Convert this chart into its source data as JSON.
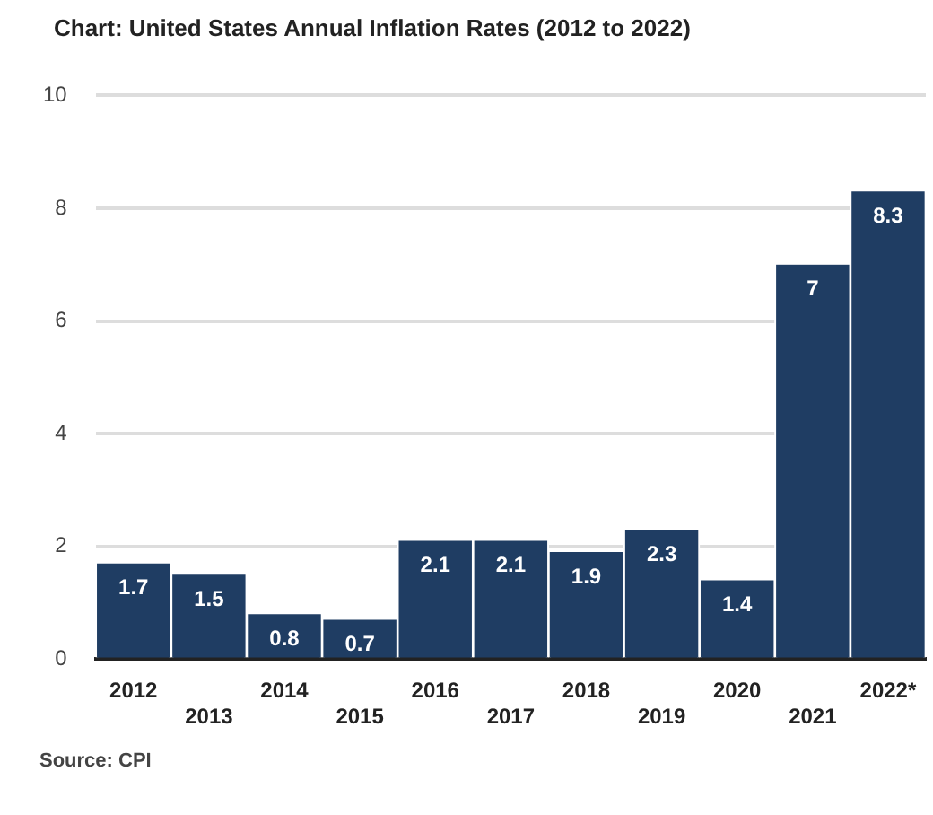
{
  "chart_data": {
    "type": "bar",
    "title": "Chart: United States Annual Inflation Rates (2012 to 2022)",
    "categories": [
      "2012",
      "2013",
      "2014",
      "2015",
      "2016",
      "2017",
      "2018",
      "2019",
      "2020",
      "2021",
      "2022*"
    ],
    "values": [
      1.7,
      1.5,
      0.8,
      0.7,
      2.1,
      2.1,
      1.9,
      2.3,
      1.4,
      7,
      8.3
    ],
    "color": "#1f3d63",
    "ylim": [
      0,
      10
    ],
    "yticks": [
      0,
      2,
      4,
      6,
      8,
      10
    ],
    "grid": "y",
    "legend": false,
    "data_labels": true,
    "annotations": [
      "Source: CPI"
    ]
  }
}
